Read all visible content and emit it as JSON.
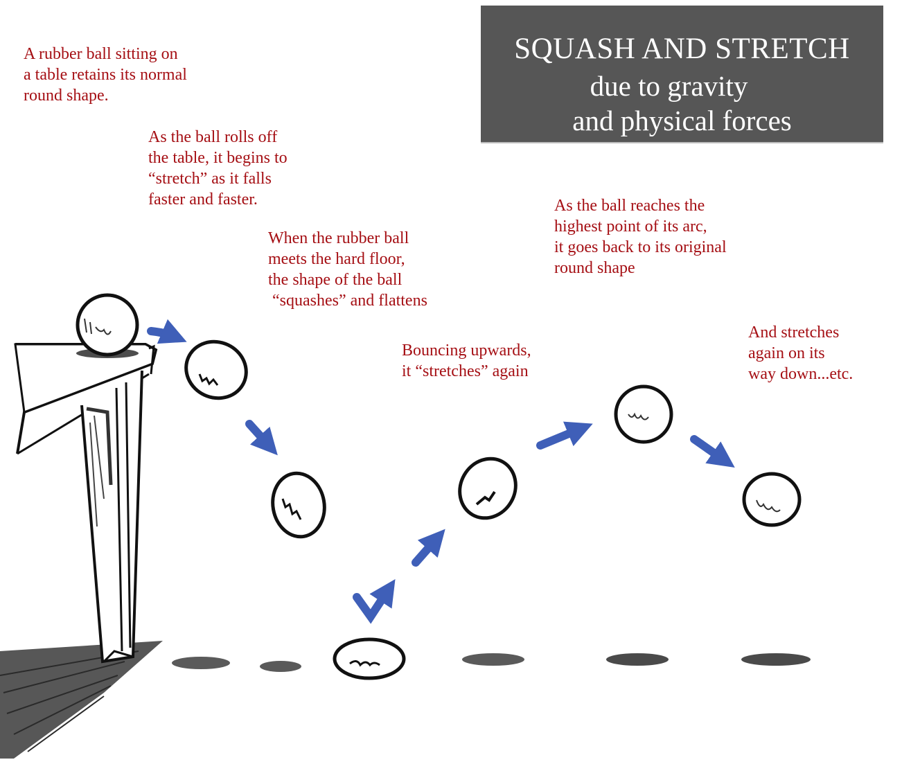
{
  "title": {
    "line1": "SQUASH AND STRETCH",
    "line2": "due to gravity",
    "line3": "and physical forces"
  },
  "notes": {
    "resting": "A rubber ball sitting on\na table retains its normal\nround shape.",
    "rolling_off": "As the ball rolls off\nthe table, it begins to\n“stretch” as it falls\nfaster and faster.",
    "impact": "When the rubber ball\nmeets the hard floor,\nthe shape of the ball\n “squashes” and flattens",
    "bounce_up": "Bouncing upwards,\nit “stretches” again",
    "apex": "As the ball reaches the\nhighest point of its arc,\nit goes back to its original\nround shape",
    "falling_again": "And stretches\nagain on its\nway down...etc."
  },
  "colors": {
    "annotation_text": "#a50f14",
    "title_background": "#565656",
    "arrow": "#3f5fb8",
    "shadow": "#5a5a5a",
    "ink": "#111111"
  },
  "icons": {
    "arrow": "motion-arrow-icon",
    "ball": "rubber-ball-icon"
  }
}
